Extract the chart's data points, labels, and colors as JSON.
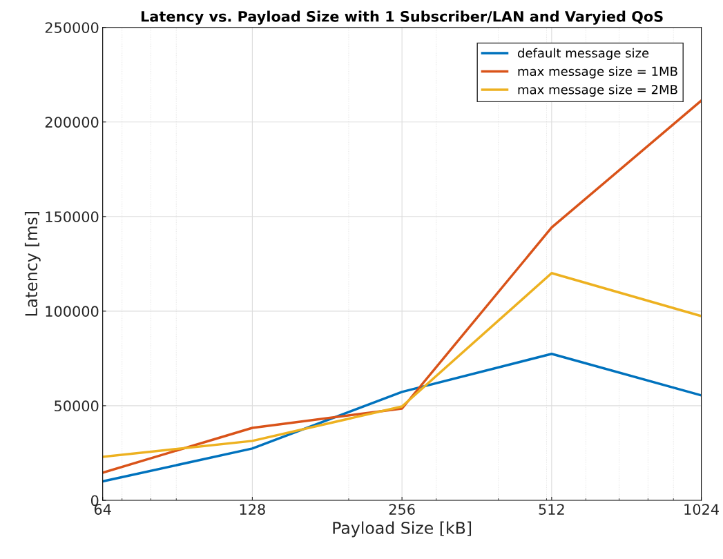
{
  "chart_data": {
    "type": "line",
    "title": "Latency vs. Payload Size with 1 Subscriber/LAN and Varyied QoS",
    "xlabel": "Payload Size [kB]",
    "ylabel": "Latency [ms]",
    "x": [
      64,
      128,
      256,
      512,
      1024
    ],
    "series": [
      {
        "name": "default message size",
        "color": "#0072bd",
        "values": [
          10000,
          27400,
          57300,
          77400,
          55500
        ]
      },
      {
        "name": "max message size = 1MB",
        "color": "#d95319",
        "values": [
          14600,
          38300,
          48500,
          144200,
          211300
        ]
      },
      {
        "name": "max message size = 2MB",
        "color": "#edb120",
        "values": [
          23000,
          31400,
          49600,
          120100,
          97400
        ]
      }
    ],
    "log": "x",
    "xlim": [
      64,
      1024
    ],
    "xticks": [
      64,
      128,
      256,
      512,
      1024
    ],
    "ylim": [
      0,
      250000
    ],
    "yticks": [
      0,
      50000,
      100000,
      150000,
      200000,
      250000
    ],
    "grid": true,
    "legend": "top right",
    "marker": "none",
    "line_style": "solid"
  }
}
